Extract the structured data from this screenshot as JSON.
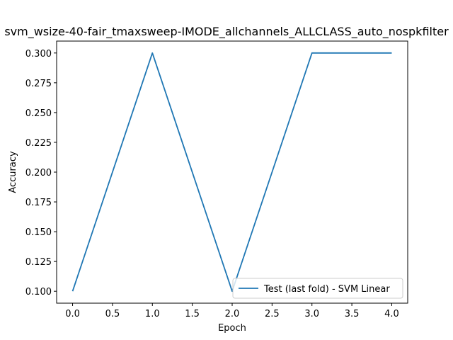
{
  "chart_data": {
    "type": "line",
    "title": "svm_wsize-40-fair_tmaxsweep-IMODE_allchannels_ALLCLASS_auto_nospkfilter",
    "xlabel": "Epoch",
    "ylabel": "Accuracy",
    "xlim": [
      -0.2,
      4.2
    ],
    "ylim": [
      0.09,
      0.31
    ],
    "xticks": [
      0.0,
      0.5,
      1.0,
      1.5,
      2.0,
      2.5,
      3.0,
      3.5,
      4.0
    ],
    "xtick_labels": [
      "0.0",
      "0.5",
      "1.0",
      "1.5",
      "2.0",
      "2.5",
      "3.0",
      "3.5",
      "4.0"
    ],
    "yticks": [
      0.1,
      0.125,
      0.15,
      0.175,
      0.2,
      0.225,
      0.25,
      0.275,
      0.3
    ],
    "ytick_labels": [
      "0.100",
      "0.125",
      "0.150",
      "0.175",
      "0.200",
      "0.225",
      "0.250",
      "0.275",
      "0.300"
    ],
    "grid": false,
    "legend_position": "lower-right",
    "series": [
      {
        "name": "Test (last fold) - SVM Linear",
        "color": "#1f77b4",
        "x": [
          0,
          1,
          2,
          3,
          4
        ],
        "values": [
          0.1,
          0.3,
          0.1,
          0.3,
          0.3
        ]
      }
    ]
  }
}
